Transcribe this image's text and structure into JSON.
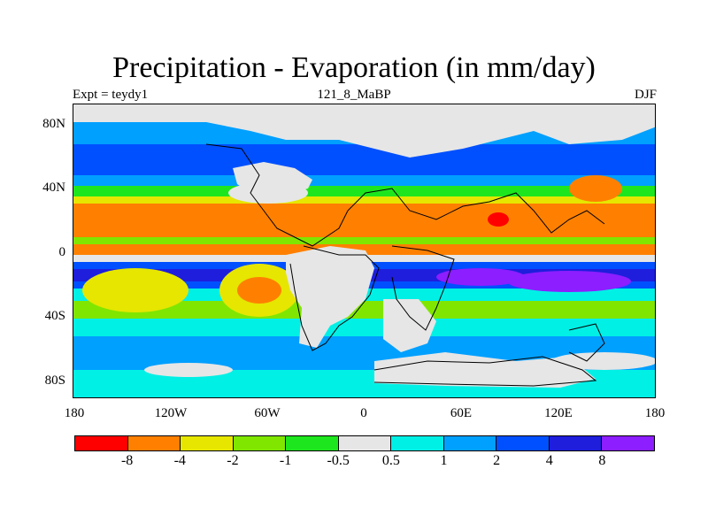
{
  "title": "Precipitation - Evaporation (in mm/day)",
  "subtitle_left": "Expt = teydy1",
  "subtitle_center": "121_8_MaBP",
  "subtitle_right": "DJF",
  "lat_ticks": [
    "80N",
    "40N",
    "0",
    "40S",
    "80S"
  ],
  "lon_ticks": [
    "180",
    "120W",
    "60W",
    "0",
    "60E",
    "120E",
    "180"
  ],
  "colorbar": {
    "labels": [
      "-8",
      "-4",
      "-2",
      "-1",
      "-0.5",
      "0.5",
      "1",
      "2",
      "4",
      "8"
    ],
    "colors": [
      "#ff0000",
      "#ff8000",
      "#e6e600",
      "#80e600",
      "#1ee61e",
      "#e6e6e6",
      "#00f0e6",
      "#00a0ff",
      "#0050ff",
      "#1e1edc",
      "#8c1eff"
    ]
  },
  "chart_data": {
    "type": "heatmap",
    "title": "Precipitation - Evaporation (in mm/day)",
    "x_ticks": [
      "180",
      "120W",
      "60W",
      "0",
      "60E",
      "120E",
      "180"
    ],
    "y_ticks": [
      "80N",
      "40N",
      "0",
      "40S",
      "80S"
    ],
    "levels": [
      -8,
      -4,
      -2,
      -1,
      -0.5,
      0.5,
      1,
      2,
      4,
      8
    ]
  }
}
